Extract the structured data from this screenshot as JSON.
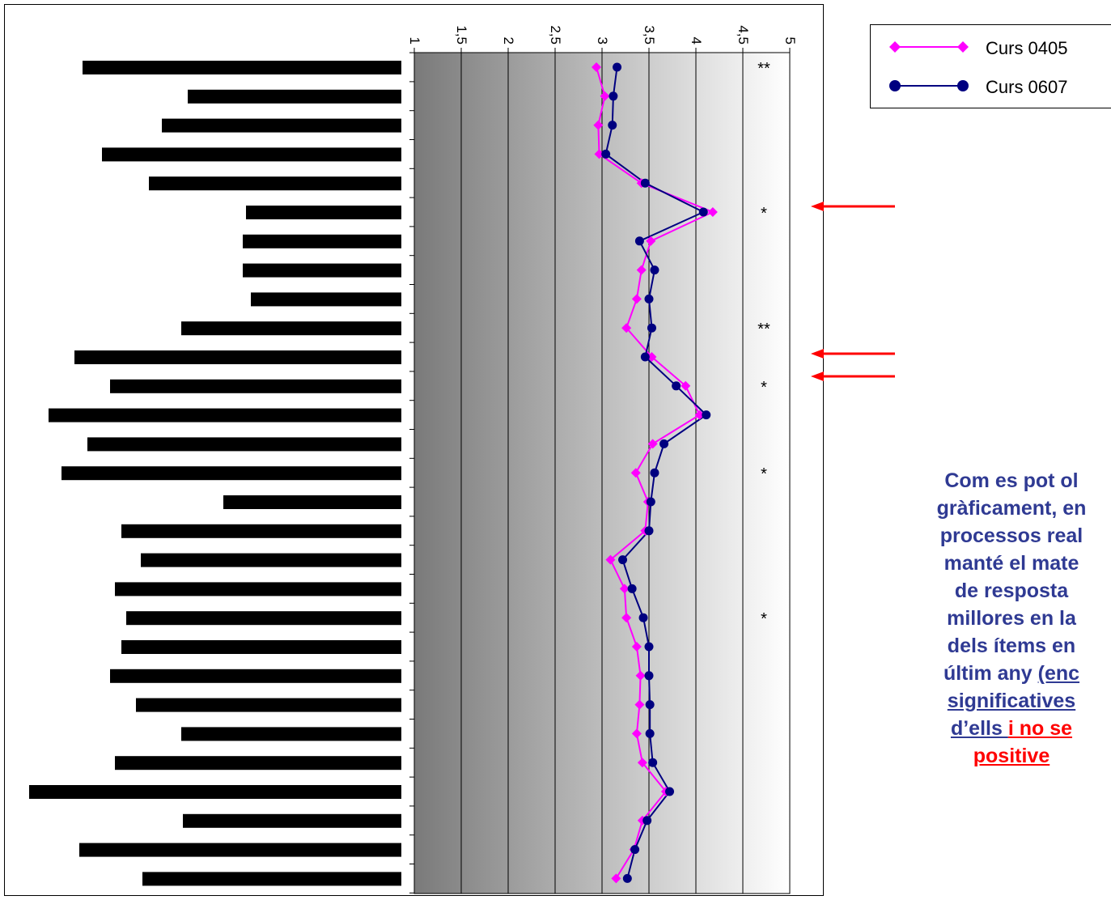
{
  "chart_data": {
    "type": "line",
    "orientation": "horizontal",
    "axis_ticks": [
      "1",
      "1,5",
      "2",
      "2,5",
      "3",
      "3,5",
      "4",
      "4,5",
      "5"
    ],
    "xlim": [
      1,
      5
    ],
    "grid": true,
    "legend_position": "top-right",
    "series": [
      {
        "name": "Curs 0405",
        "color": "#ff00ff",
        "marker": "diamond",
        "values": [
          2.94,
          3.03,
          2.96,
          2.97,
          3.42,
          4.18,
          3.52,
          3.42,
          3.37,
          3.26,
          3.53,
          3.89,
          4.04,
          3.54,
          3.36,
          3.49,
          3.46,
          3.09,
          3.24,
          3.26,
          3.37,
          3.41,
          3.4,
          3.37,
          3.43,
          3.68,
          3.43,
          3.34,
          3.15
        ]
      },
      {
        "name": "Curs 0607",
        "color": "#000080",
        "marker": "circle",
        "values": [
          3.16,
          3.12,
          3.11,
          3.04,
          3.46,
          4.08,
          3.4,
          3.56,
          3.5,
          3.53,
          3.46,
          3.79,
          4.11,
          3.66,
          3.56,
          3.52,
          3.5,
          3.22,
          3.32,
          3.44,
          3.5,
          3.5,
          3.51,
          3.51,
          3.54,
          3.72,
          3.48,
          3.35,
          3.27
        ]
      }
    ],
    "significance_marks": [
      "**",
      "",
      "",
      "",
      "",
      "*",
      "",
      "",
      "",
      "**",
      "",
      "*",
      "",
      "",
      "*",
      "",
      "",
      "",
      "",
      "*",
      "",
      "",
      "",
      "",
      "",
      "",
      "",
      "",
      ""
    ],
    "arrow_rows": [
      5,
      10,
      11
    ],
    "item_label_bar_ends": [
      102,
      232,
      200,
      126,
      184,
      304,
      300,
      300,
      310,
      224,
      92,
      136,
      60,
      108,
      76,
      276,
      150,
      174,
      142,
      156,
      150,
      136,
      168,
      224,
      142,
      36,
      226,
      98,
      176
    ]
  },
  "legend": {
    "items": [
      {
        "label": "Curs 0405"
      },
      {
        "label": "Curs 0607"
      }
    ]
  },
  "comment": {
    "line1": "Com es pot ol",
    "line2": "gràficament, en",
    "line3": "processos real",
    "line4": "manté el mate",
    "line5": "de resposta",
    "line6": "millores en la",
    "line7": "dels ítems en",
    "line8_plain": "últim any ",
    "line8_u": "(enc",
    "line9_u": "significatives",
    "line10_u": "d’ells ",
    "line10_red": "i no se",
    "line11_red": "positive"
  }
}
